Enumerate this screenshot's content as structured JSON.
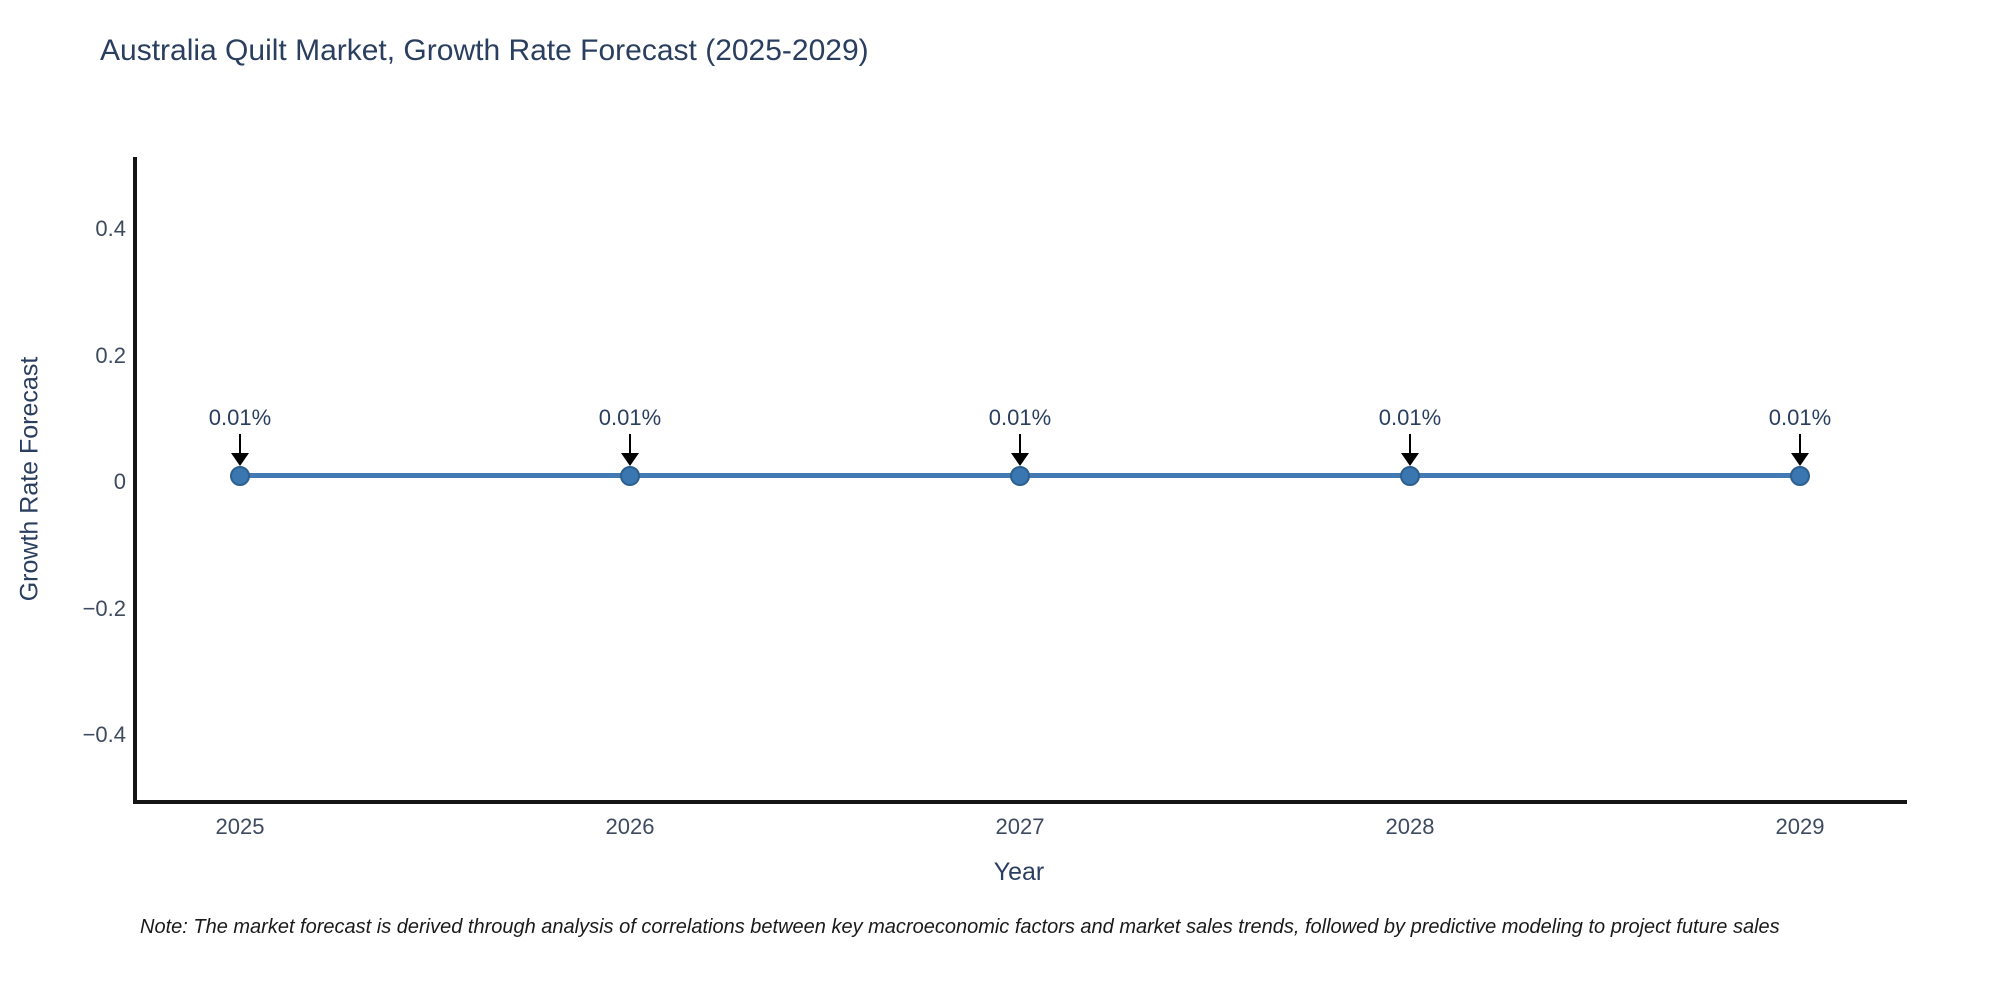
{
  "title": "Australia Quilt Market, Growth Rate Forecast (2025-2029)",
  "note": "Note: The market forecast is derived through analysis of correlations between key macroeconomic factors and market sales trends, followed by predictive modeling to project future sales",
  "chart_data": {
    "type": "line",
    "title": "Australia Quilt Market, Growth Rate Forecast (2025-2029)",
    "xlabel": "Year",
    "ylabel": "Growth Rate Forecast",
    "x": [
      "2025",
      "2026",
      "2027",
      "2028",
      "2029"
    ],
    "series": [
      {
        "name": "Growth Rate Forecast",
        "values": [
          0.01,
          0.01,
          0.01,
          0.01,
          0.01
        ]
      }
    ],
    "point_labels": [
      "0.01%",
      "0.01%",
      "0.01%",
      "0.01%",
      "0.01%"
    ],
    "yticks": [
      0.4,
      0.2,
      0,
      -0.2,
      -0.4
    ],
    "ylim": [
      -0.5,
      0.51
    ],
    "grid": false,
    "legend": "none",
    "colors": {
      "line": "#437ab3",
      "marker_fill": "#3a76b0",
      "marker_edge": "#2d608f",
      "axis": "#151515",
      "title_text": "#2a3f5f",
      "tick_text": "#3d4a5f",
      "arrow": "#000000"
    }
  }
}
